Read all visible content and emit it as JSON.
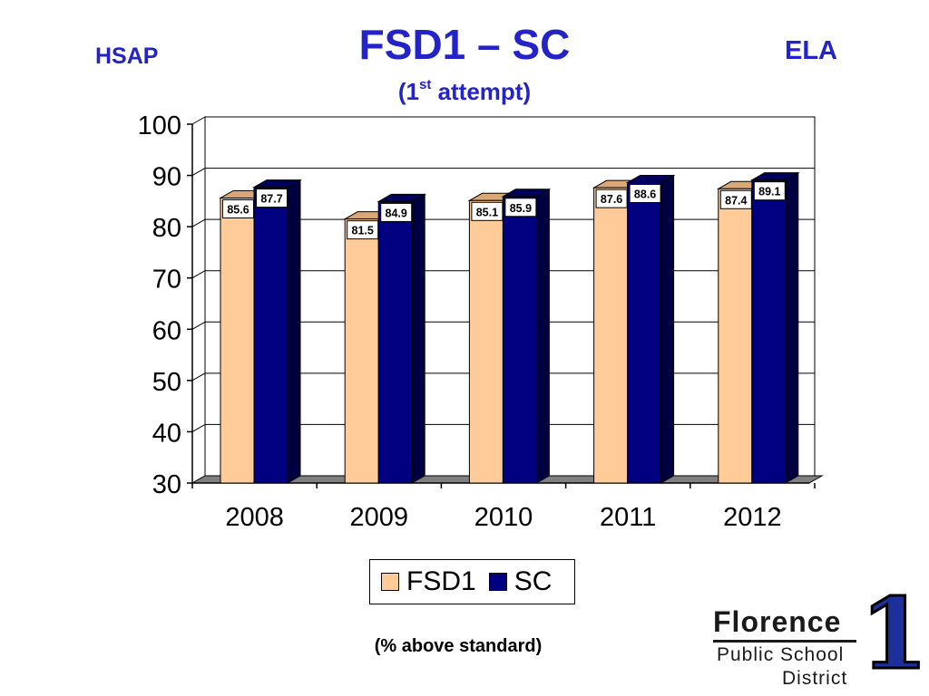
{
  "header": {
    "title": "FSD1 – SC",
    "subtitle_prefix": "(1",
    "subtitle_sup": "st",
    "subtitle_suffix": " attempt)",
    "left_label": "HSAP",
    "right_label": "ELA"
  },
  "footnote": "(% above standard)",
  "logo": {
    "name": "Florence",
    "line2": "Public School",
    "line3": "District",
    "numeral": "1"
  },
  "chart_data": {
    "type": "bar",
    "categories": [
      "2008",
      "2009",
      "2010",
      "2011",
      "2012"
    ],
    "series": [
      {
        "name": "FSD1",
        "values": [
          85.6,
          81.5,
          85.1,
          87.6,
          87.4
        ],
        "color": "#ffcc99"
      },
      {
        "name": "SC",
        "values": [
          87.7,
          84.9,
          85.9,
          88.6,
          89.1
        ],
        "color": "#000080"
      }
    ],
    "ylim": [
      30,
      100
    ],
    "yticks": [
      30,
      40,
      50,
      60,
      70,
      80,
      90,
      100
    ],
    "grid": true,
    "legend_position": "bottom",
    "data_labels": true,
    "style": "3d-clustered"
  }
}
